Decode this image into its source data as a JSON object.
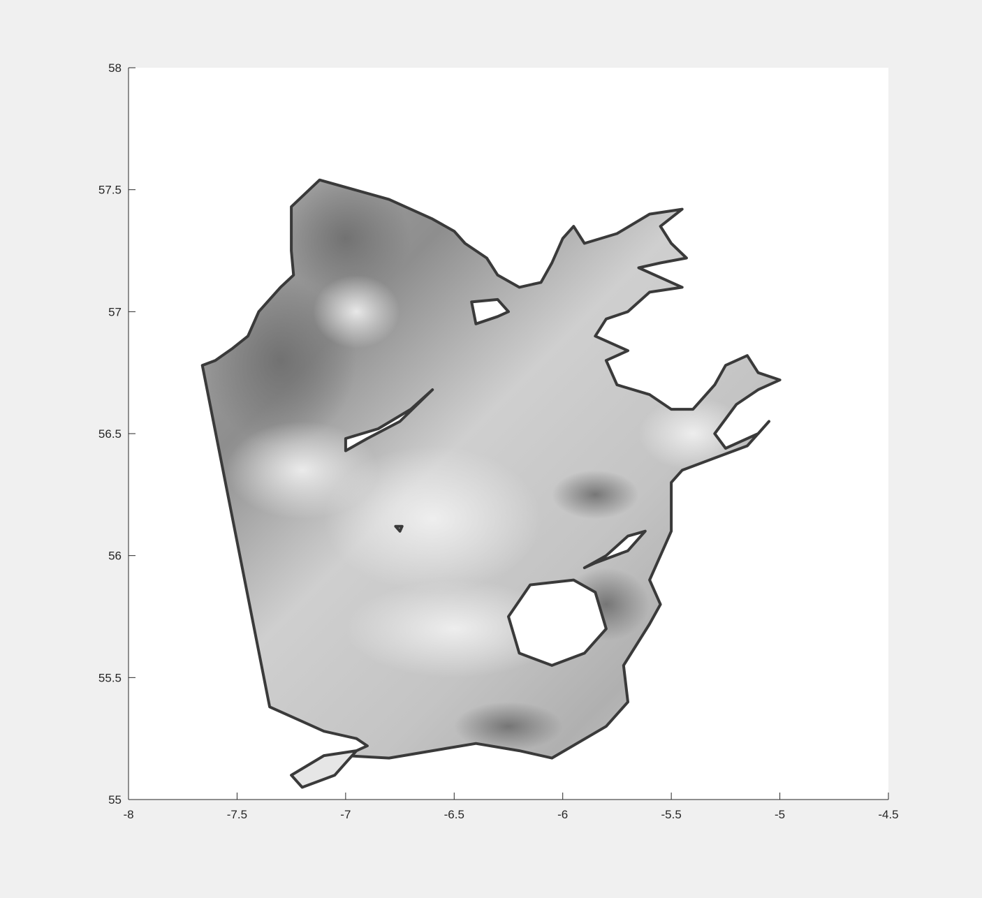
{
  "chart_data": {
    "type": "heatmap",
    "title": "",
    "xlabel": "",
    "ylabel": "",
    "xlim": [
      -8,
      -4.5
    ],
    "ylim": [
      55,
      58
    ],
    "xticks": [
      -8,
      -7.5,
      -7,
      -6.5,
      -6,
      -5.5,
      -5,
      -4.5
    ],
    "xtick_labels": [
      "-8",
      "-7.5",
      "-7",
      "-6.5",
      "-6",
      "-5.5",
      "-5",
      "-4.5"
    ],
    "yticks": [
      55,
      55.5,
      56,
      56.5,
      57,
      57.5,
      58
    ],
    "ytick_labels": [
      "55",
      "55.5",
      "56",
      "56.5",
      "57",
      "57.5",
      "58"
    ],
    "grid": false,
    "colormap": "gray",
    "colors": {
      "figure_background": "#f0f0f0",
      "axes_background": "#ffffff",
      "axis_color": "#262626",
      "boundary_color": "#3a3a3a",
      "field_light": "#e6e6e6",
      "field_mid": "#c2c2c2",
      "field_dark": "#8a8a8a"
    },
    "domain_outline": [
      [
        -7.6,
        56.8
      ],
      [
        -7.52,
        56.85
      ],
      [
        -7.45,
        56.9
      ],
      [
        -7.4,
        57.0
      ],
      [
        -7.3,
        57.1
      ],
      [
        -7.24,
        57.15
      ],
      [
        -7.25,
        57.25
      ],
      [
        -7.25,
        57.43
      ],
      [
        -7.12,
        57.54
      ],
      [
        -6.8,
        57.46
      ],
      [
        -6.6,
        57.38
      ],
      [
        -6.5,
        57.33
      ],
      [
        -6.45,
        57.28
      ],
      [
        -6.35,
        57.22
      ],
      [
        -6.3,
        57.15
      ],
      [
        -6.2,
        57.1
      ],
      [
        -6.1,
        57.12
      ],
      [
        -6.05,
        57.2
      ],
      [
        -6.0,
        57.3
      ],
      [
        -5.95,
        57.35
      ],
      [
        -5.9,
        57.28
      ],
      [
        -5.75,
        57.32
      ],
      [
        -5.6,
        57.4
      ],
      [
        -5.45,
        57.42
      ],
      [
        -5.55,
        57.35
      ],
      [
        -5.5,
        57.28
      ],
      [
        -5.43,
        57.22
      ],
      [
        -5.55,
        57.2
      ],
      [
        -5.65,
        57.18
      ],
      [
        -5.45,
        57.1
      ],
      [
        -5.6,
        57.08
      ],
      [
        -5.7,
        57.0
      ],
      [
        -5.8,
        56.97
      ],
      [
        -5.85,
        56.9
      ],
      [
        -5.7,
        56.84
      ],
      [
        -5.8,
        56.8
      ],
      [
        -5.75,
        56.7
      ],
      [
        -5.6,
        56.66
      ],
      [
        -5.5,
        56.6
      ],
      [
        -5.4,
        56.6
      ],
      [
        -5.3,
        56.7
      ],
      [
        -5.25,
        56.78
      ],
      [
        -5.15,
        56.82
      ],
      [
        -5.1,
        56.75
      ],
      [
        -5.0,
        56.72
      ],
      [
        -5.1,
        56.68
      ],
      [
        -5.2,
        56.62
      ],
      [
        -5.3,
        56.5
      ],
      [
        -5.25,
        56.44
      ],
      [
        -5.1,
        56.5
      ],
      [
        -5.05,
        56.55
      ],
      [
        -5.15,
        56.45
      ],
      [
        -5.3,
        56.4
      ],
      [
        -5.45,
        56.35
      ],
      [
        -5.5,
        56.3
      ],
      [
        -5.5,
        56.2
      ],
      [
        -5.5,
        56.1
      ],
      [
        -5.55,
        56.0
      ],
      [
        -5.6,
        55.9
      ],
      [
        -5.55,
        55.8
      ],
      [
        -5.6,
        55.72
      ],
      [
        -5.72,
        55.55
      ],
      [
        -5.7,
        55.4
      ],
      [
        -5.8,
        55.3
      ],
      [
        -6.05,
        55.17
      ],
      [
        -6.2,
        55.2
      ],
      [
        -6.4,
        55.23
      ],
      [
        -6.6,
        55.2
      ],
      [
        -6.8,
        55.17
      ],
      [
        -7.0,
        55.18
      ],
      [
        -6.9,
        55.22
      ],
      [
        -6.95,
        55.25
      ],
      [
        -7.1,
        55.28
      ],
      [
        -7.2,
        55.32
      ],
      [
        -7.35,
        55.38
      ],
      [
        -7.66,
        56.78
      ]
    ],
    "islands": [
      {
        "name": "",
        "outline": [
          [
            -7.0,
            56.43
          ],
          [
            -6.9,
            56.48
          ],
          [
            -6.75,
            56.55
          ],
          [
            -6.6,
            56.68
          ],
          [
            -6.7,
            56.6
          ],
          [
            -6.85,
            56.52
          ],
          [
            -7.0,
            56.48
          ]
        ]
      },
      {
        "name": "",
        "outline": [
          [
            -6.4,
            56.95
          ],
          [
            -6.3,
            56.98
          ],
          [
            -6.25,
            57.0
          ],
          [
            -6.3,
            57.05
          ],
          [
            -6.42,
            57.04
          ]
        ]
      },
      {
        "name": "",
        "outline": [
          [
            -6.05,
            55.55
          ],
          [
            -5.9,
            55.6
          ],
          [
            -5.8,
            55.7
          ],
          [
            -5.85,
            55.85
          ],
          [
            -5.95,
            55.9
          ],
          [
            -6.15,
            55.88
          ],
          [
            -6.25,
            55.75
          ],
          [
            -6.2,
            55.6
          ]
        ]
      },
      {
        "name": "",
        "outline": [
          [
            -5.9,
            55.95
          ],
          [
            -5.8,
            56.0
          ],
          [
            -5.7,
            56.08
          ],
          [
            -5.62,
            56.1
          ],
          [
            -5.7,
            56.02
          ],
          [
            -5.85,
            55.97
          ]
        ]
      },
      {
        "name": "",
        "outline": [
          [
            -6.75,
            56.1
          ],
          [
            -6.74,
            56.12
          ],
          [
            -6.77,
            56.12
          ]
        ]
      }
    ],
    "lough": {
      "name": "",
      "outline": [
        [
          -7.2,
          55.05
        ],
        [
          -7.05,
          55.1
        ],
        [
          -6.95,
          55.2
        ],
        [
          -7.1,
          55.18
        ],
        [
          -7.25,
          55.1
        ]
      ]
    }
  }
}
